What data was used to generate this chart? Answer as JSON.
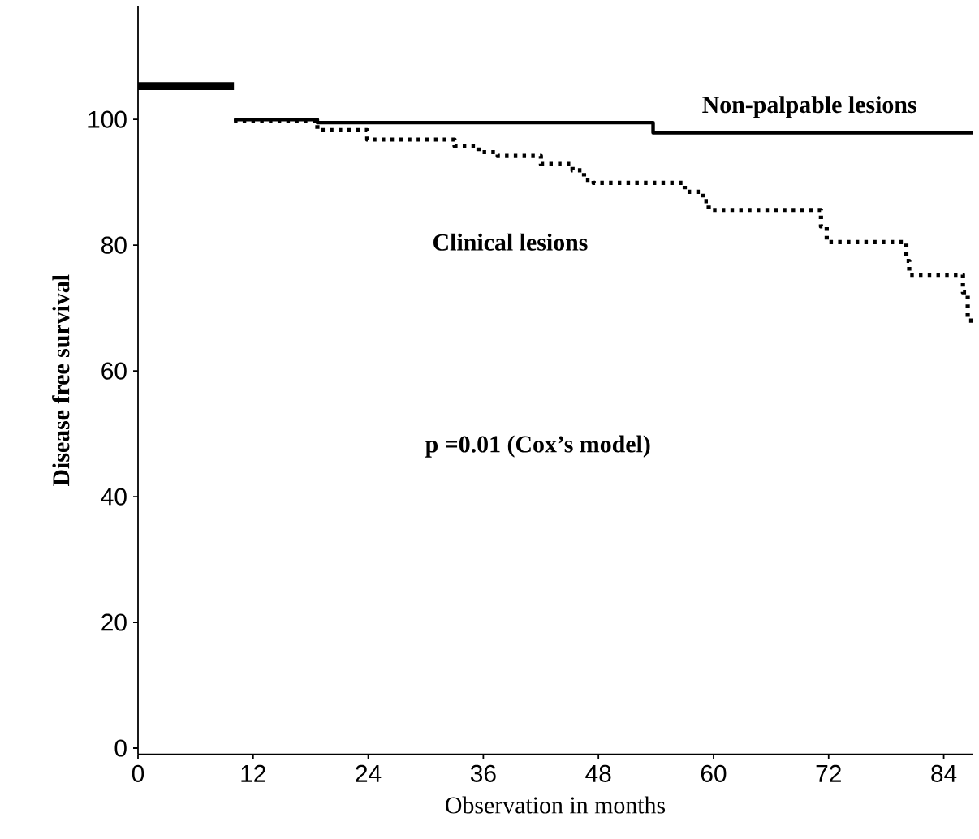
{
  "chart_data": {
    "type": "step",
    "xlabel": "Observation in months",
    "ylabel": "Disease free survival",
    "xlim": [
      0,
      87
    ],
    "ylim": [
      -1,
      118
    ],
    "xticks": [
      0,
      12,
      24,
      36,
      48,
      60,
      72,
      84
    ],
    "yticks": [
      0,
      20,
      40,
      60,
      80,
      100
    ],
    "grid": false,
    "legend": false,
    "annotations": [
      "p =0.01  (Cox’s model)"
    ],
    "series": [
      {
        "name": "Non-palpable lesions",
        "color": "#000000",
        "line_style": "solid",
        "x": [
          10,
          18.7,
          53.7,
          87
        ],
        "values": [
          100,
          99.5,
          97.9,
          97.9
        ]
      },
      {
        "name": "Clinical lesions",
        "color": "#000000",
        "line_style": "dotted",
        "x": [
          10,
          18.7,
          23.9,
          33,
          35.5,
          37.5,
          42,
          45.3,
          46.5,
          47.5,
          57,
          58.9,
          59.5,
          71.2,
          71.8,
          80.1,
          80.4,
          86,
          86.5,
          87
        ],
        "values": [
          99.7,
          98.3,
          96.8,
          95.8,
          94.8,
          94.2,
          92.9,
          91.9,
          90.4,
          89.9,
          88.5,
          87,
          85.6,
          83,
          80.5,
          77.5,
          75.3,
          72.5,
          68,
          68
        ]
      },
      {
        "type": "line",
        "color": "#000000",
        "line_style": "solid",
        "x": [
          0,
          10
        ],
        "values": [
          105.3,
          105.3
        ]
      }
    ]
  }
}
